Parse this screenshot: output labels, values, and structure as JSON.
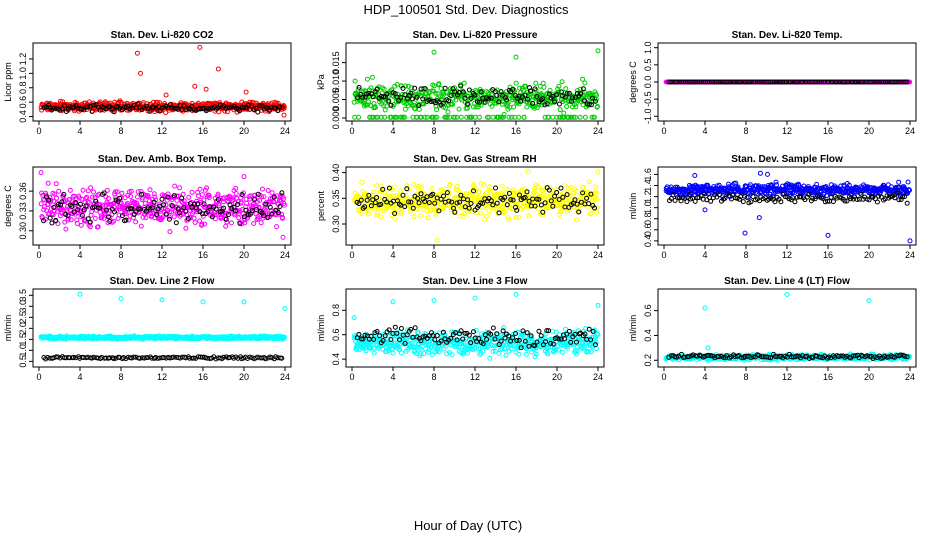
{
  "title": "HDP_100501  Std. Dev. Diagnostics",
  "xlabel": "Hour of Day (UTC)",
  "chart_data": [
    {
      "type": "scatter",
      "title": "Stan. Dev. Li-820 CO2",
      "ylabel": "Licor ppm",
      "color": "#ff0000",
      "xlim": [
        0,
        24
      ],
      "ylim": [
        0.38,
        1.38
      ],
      "yticks": [
        "0.4",
        "0.6",
        "0.8",
        "1.0",
        "1.2"
      ],
      "yticks_values": [
        0.4,
        0.6,
        0.8,
        1.0,
        1.2
      ],
      "xticks": [
        0,
        4,
        8,
        12,
        16,
        20,
        24
      ],
      "base": 0.54,
      "spread": 0.06,
      "black_offset": -0.02,
      "outliers": [
        [
          9.6,
          1.28
        ],
        [
          15.7,
          1.36
        ],
        [
          9.9,
          1.0
        ],
        [
          17.5,
          1.06
        ],
        [
          15.2,
          0.82
        ],
        [
          16.3,
          0.78
        ],
        [
          23.9,
          0.42
        ],
        [
          20.2,
          0.74
        ],
        [
          12.4,
          0.7
        ]
      ]
    },
    {
      "type": "scatter",
      "title": "Stan. Dev. Li-820 Pressure",
      "ylabel": "kPa",
      "color": "#00cc00",
      "xlim": [
        0,
        24
      ],
      "ylim": [
        0.0,
        0.0195
      ],
      "yticks": [
        "0.000",
        "0.005",
        "0.010",
        "0.015"
      ],
      "yticks_values": [
        0.0,
        0.005,
        0.01,
        0.015
      ],
      "xticks": [
        0,
        4,
        8,
        12,
        16,
        20,
        24
      ],
      "base": 0.0055,
      "spread": 0.003,
      "black_offset": 0.0005,
      "outliers": [
        [
          8.0,
          0.0178
        ],
        [
          16.0,
          0.0165
        ],
        [
          24.0,
          0.0182
        ],
        [
          1.5,
          0.0105
        ],
        [
          2.0,
          0.011
        ],
        [
          22.5,
          0.0105
        ],
        [
          0.3,
          0.01
        ],
        [
          20.5,
          0.0098
        ]
      ]
    },
    {
      "type": "scatter",
      "title": "Stan. Dev. Li-820 Temp.",
      "ylabel": "degrees C",
      "color": "#ff00ff",
      "xlim": [
        0,
        24
      ],
      "ylim": [
        -1.05,
        1.05
      ],
      "yticks": [
        "-1.0",
        "-0.5",
        "0.0",
        "0.5",
        "1.0"
      ],
      "yticks_values": [
        -1.0,
        -0.5,
        0.0,
        0.5,
        1.0
      ],
      "xticks": [
        0,
        4,
        8,
        12,
        16,
        20,
        24
      ],
      "base": 0.0,
      "spread": 0.0,
      "black_offset": 0.0,
      "outliers": []
    },
    {
      "type": "scatter",
      "title": "Stan. Dev. Amb. Box Temp.",
      "ylabel": "degrees C",
      "color": "#ff00ff",
      "xlim": [
        0,
        24
      ],
      "ylim": [
        0.283,
        0.392
      ],
      "yticks": [
        "0.30",
        "0.33",
        "0.36"
      ],
      "yticks_values": [
        0.3,
        0.33,
        0.36
      ],
      "xticks": [
        0,
        4,
        8,
        12,
        16,
        20,
        24
      ],
      "base": 0.335,
      "spread": 0.025,
      "black_offset": 0.0,
      "outliers": [
        [
          0.2,
          0.388
        ],
        [
          0.9,
          0.372
        ],
        [
          20.0,
          0.382
        ],
        [
          23.8,
          0.29
        ]
      ]
    },
    {
      "type": "scatter",
      "title": "Stan. Dev. Gas Stream RH",
      "ylabel": "percent",
      "color": "#ffff00",
      "xlim": [
        0,
        24
      ],
      "ylim": [
        0.265,
        0.405
      ],
      "yticks": [
        "0.30",
        "0.35",
        "0.40"
      ],
      "yticks_values": [
        0.3,
        0.35,
        0.4
      ],
      "xticks": [
        0,
        4,
        8,
        12,
        16,
        20,
        24
      ],
      "base": 0.345,
      "spread": 0.028,
      "black_offset": 0.0,
      "outliers": [
        [
          8.3,
          0.268
        ],
        [
          17.2,
          0.402
        ],
        [
          24.0,
          0.401
        ]
      ]
    },
    {
      "type": "scatter",
      "title": "Stan. Dev. Sample Flow",
      "ylabel": "ml/min",
      "color": "#0000ff",
      "xlim": [
        0,
        24
      ],
      "ylim": [
        0.38,
        1.68
      ],
      "yticks": [
        "0.4",
        "0.6",
        "0.8",
        "1.0",
        "1.2",
        "1.4",
        "1.6"
      ],
      "yticks_values": [
        0.4,
        0.6,
        0.8,
        1.0,
        1.2,
        1.4,
        1.6
      ],
      "xticks": [
        0,
        4,
        8,
        12,
        16,
        20,
        24
      ],
      "base": 1.32,
      "spread": 0.1,
      "black_offset": -0.15,
      "outliers": [
        [
          7.9,
          0.54
        ],
        [
          16.0,
          0.5
        ],
        [
          24.0,
          0.4
        ],
        [
          9.3,
          0.82
        ],
        [
          4.0,
          0.96
        ],
        [
          9.4,
          1.62
        ],
        [
          10.1,
          1.6
        ],
        [
          3.0,
          1.58
        ]
      ]
    },
    {
      "type": "scatter",
      "title": "Stan. Dev. Line 2 Flow",
      "ylabel": "ml/min",
      "color": "#00ffff",
      "xlim": [
        0,
        24
      ],
      "ylim": [
        0.38,
        3.65
      ],
      "yticks": [
        "0.5",
        "1.0",
        "1.5",
        "2.0",
        "2.5",
        "3.0",
        "3.5"
      ],
      "yticks_values": [
        0.5,
        1.0,
        1.5,
        2.0,
        2.5,
        3.0,
        3.5
      ],
      "xticks": [
        0,
        4,
        8,
        12,
        16,
        20,
        24
      ],
      "base": 1.58,
      "spread": 0.06,
      "black_offset": -0.92,
      "outliers": [
        [
          4.0,
          3.55
        ],
        [
          8.0,
          3.35
        ],
        [
          12.0,
          3.3
        ],
        [
          16.0,
          3.2
        ],
        [
          20.0,
          3.2
        ],
        [
          24.0,
          2.9
        ]
      ]
    },
    {
      "type": "scatter",
      "title": "Stan. Dev. Line 3 Flow",
      "ylabel": "ml/min",
      "color": "#00ffff",
      "xlim": [
        0,
        24
      ],
      "ylim": [
        0.36,
        0.95
      ],
      "yticks": [
        "0.4",
        "0.6",
        "0.8"
      ],
      "yticks_values": [
        0.4,
        0.6,
        0.8
      ],
      "xticks": [
        0,
        4,
        8,
        12,
        16,
        20,
        24
      ],
      "base": 0.53,
      "spread": 0.09,
      "black_offset": 0.05,
      "outliers": [
        [
          4.0,
          0.87
        ],
        [
          8.0,
          0.88
        ],
        [
          12.0,
          0.9
        ],
        [
          16.0,
          0.93
        ],
        [
          24.0,
          0.84
        ],
        [
          0.2,
          0.74
        ]
      ]
    },
    {
      "type": "scatter",
      "title": "Stan. Dev. Line 4 (LT) Flow",
      "ylabel": "ml/min",
      "color": "#00ffff",
      "xlim": [
        0,
        24
      ],
      "ylim": [
        0.17,
        0.75
      ],
      "yticks": [
        "0.2",
        "0.4",
        "0.6"
      ],
      "yticks_values": [
        0.2,
        0.4,
        0.6
      ],
      "xticks": [
        0,
        4,
        8,
        12,
        16,
        20,
        24
      ],
      "base": 0.225,
      "spread": 0.018,
      "black_offset": 0.005,
      "outliers": [
        [
          4.0,
          0.62
        ],
        [
          12.0,
          0.73
        ],
        [
          20.0,
          0.68
        ],
        [
          4.3,
          0.3
        ]
      ]
    }
  ]
}
